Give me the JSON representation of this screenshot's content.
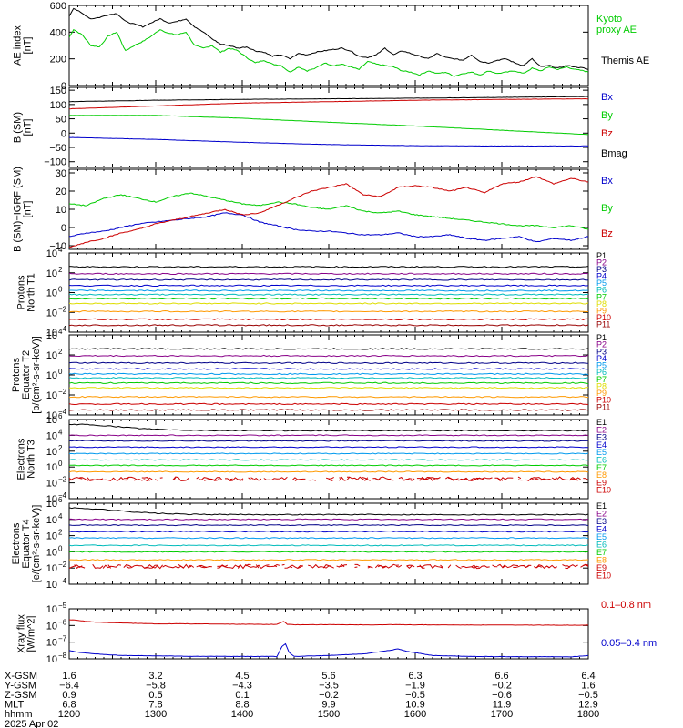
{
  "colors": {
    "black": "#000000",
    "green": "#00cc00",
    "red": "#cc0000",
    "blue": "#0000cc",
    "purple": "#880088",
    "navy": "#000088",
    "lightblue": "#0099ee",
    "cyan": "#00bbbb",
    "teal": "#008888",
    "lime": "#00ee00",
    "yellow": "#dddd00",
    "orange": "#ff9900",
    "darkorange": "#ff6600",
    "darkred": "#990000",
    "maroon": "#770000"
  },
  "chart_data": [
    {
      "type": "line",
      "ylabel": "AE index\n[nT]",
      "ylim": [
        0,
        600
      ],
      "yticks": [
        0,
        200,
        400,
        600
      ],
      "yticklabels": [
        "0",
        "200",
        "400",
        "600"
      ],
      "xlim": [
        1200,
        1800
      ],
      "series": [
        {
          "name": "Kyoto proxy AE",
          "color": "#00cc00",
          "x": [
            1200,
            1205,
            1215,
            1225,
            1235,
            1245,
            1255,
            1265,
            1275,
            1285,
            1295,
            1305,
            1315,
            1325,
            1335,
            1345,
            1355,
            1365,
            1375,
            1385,
            1395,
            1405,
            1415,
            1425,
            1435,
            1445,
            1455,
            1465,
            1475,
            1485,
            1495,
            1505,
            1515,
            1525,
            1535,
            1545,
            1555,
            1565,
            1575,
            1585,
            1595,
            1605,
            1615,
            1625,
            1635,
            1645,
            1655,
            1665,
            1675,
            1685,
            1695,
            1705,
            1715,
            1725,
            1735,
            1745,
            1755,
            1765,
            1775,
            1785,
            1795,
            1800
          ],
          "y": [
            360,
            420,
            380,
            300,
            290,
            370,
            400,
            260,
            300,
            330,
            370,
            420,
            390,
            380,
            400,
            300,
            280,
            300,
            250,
            280,
            260,
            210,
            170,
            190,
            160,
            150,
            100,
            140,
            110,
            130,
            170,
            150,
            160,
            140,
            120,
            180,
            160,
            150,
            140,
            110,
            100,
            80,
            110,
            90,
            100,
            70,
            90,
            100,
            80,
            110,
            90,
            100,
            110,
            90,
            130,
            110,
            140,
            120,
            140,
            120,
            110,
            100
          ]
        },
        {
          "name": "Themis AE",
          "color": "#000000",
          "x": [
            1200,
            1205,
            1215,
            1225,
            1235,
            1245,
            1255,
            1265,
            1275,
            1285,
            1295,
            1305,
            1315,
            1325,
            1335,
            1345,
            1355,
            1365,
            1375,
            1385,
            1395,
            1405,
            1415,
            1425,
            1435,
            1445,
            1455,
            1465,
            1475,
            1485,
            1495,
            1505,
            1515,
            1525,
            1535,
            1545,
            1555,
            1565,
            1575,
            1585,
            1595,
            1605,
            1615,
            1625,
            1635,
            1645,
            1655,
            1665,
            1675,
            1685,
            1695,
            1705,
            1715,
            1725,
            1735,
            1745,
            1755,
            1765,
            1775,
            1785,
            1795,
            1800
          ],
          "y": [
            520,
            580,
            540,
            500,
            510,
            530,
            540,
            480,
            460,
            440,
            470,
            500,
            470,
            480,
            500,
            440,
            400,
            350,
            310,
            300,
            280,
            290,
            260,
            250,
            220,
            230,
            200,
            240,
            230,
            250,
            260,
            270,
            280,
            260,
            220,
            210,
            230,
            280,
            230,
            260,
            240,
            220,
            200,
            240,
            210,
            200,
            190,
            230,
            180,
            170,
            190,
            200,
            170,
            150,
            200,
            140,
            150,
            130,
            150,
            140,
            130,
            120
          ]
        }
      ],
      "legend": [
        "Kyoto\nproxy AE",
        "Themis AE"
      ]
    },
    {
      "type": "line",
      "ylabel": "B (SM)\n[nT]",
      "ylim": [
        -120,
        160
      ],
      "yticks": [
        -100,
        -50,
        0,
        50,
        100,
        150
      ],
      "yticklabels": [
        "−100",
        "−50",
        "0",
        "50",
        "100",
        "150"
      ],
      "xlim": [
        1200,
        1800
      ],
      "series": [
        {
          "name": "Bx",
          "color": "#0000cc",
          "x": [
            1200,
            1300,
            1400,
            1500,
            1600,
            1700,
            1800
          ],
          "y": [
            -15,
            -22,
            -32,
            -40,
            -44,
            -45,
            -45
          ]
        },
        {
          "name": "By",
          "color": "#00cc00",
          "x": [
            1200,
            1300,
            1400,
            1500,
            1600,
            1700,
            1800
          ],
          "y": [
            62,
            62,
            52,
            38,
            25,
            10,
            -5
          ]
        },
        {
          "name": "Bz",
          "color": "#cc0000",
          "x": [
            1200,
            1300,
            1400,
            1500,
            1600,
            1700,
            1800
          ],
          "y": [
            85,
            95,
            105,
            110,
            115,
            118,
            120
          ]
        },
        {
          "name": "Bmag",
          "color": "#000000",
          "x": [
            1200,
            1300,
            1400,
            1500,
            1600,
            1700,
            1800
          ],
          "y": [
            110,
            115,
            118,
            120,
            122,
            125,
            128
          ]
        }
      ]
    },
    {
      "type": "line",
      "ylabel": "B (SM)−IGRF (SM)\n[nT]",
      "ylim": [
        -12,
        32
      ],
      "yticks": [
        -10,
        0,
        10,
        20,
        30
      ],
      "yticklabels": [
        "−10",
        "0",
        "10",
        "20",
        "30"
      ],
      "xlim": [
        1200,
        1800
      ],
      "series": [
        {
          "name": "Bx",
          "color": "#0000cc",
          "x": [
            1200,
            1220,
            1240,
            1260,
            1280,
            1300,
            1320,
            1340,
            1360,
            1380,
            1400,
            1420,
            1440,
            1460,
            1480,
            1500,
            1520,
            1540,
            1560,
            1580,
            1600,
            1620,
            1640,
            1660,
            1680,
            1700,
            1720,
            1740,
            1760,
            1780,
            1800
          ],
          "y": [
            -5,
            -3,
            -2,
            0,
            2,
            3,
            4,
            5,
            6,
            8,
            7,
            3,
            1,
            -1,
            -2,
            -2,
            -3,
            -4,
            -4,
            -3,
            -5,
            -5,
            -4,
            -6,
            -7,
            -6,
            -5,
            -8,
            -6,
            -7,
            -5
          ]
        },
        {
          "name": "By",
          "color": "#00cc00",
          "x": [
            1200,
            1220,
            1240,
            1260,
            1280,
            1300,
            1320,
            1340,
            1360,
            1380,
            1400,
            1420,
            1440,
            1460,
            1480,
            1500,
            1520,
            1540,
            1560,
            1580,
            1600,
            1620,
            1640,
            1660,
            1680,
            1700,
            1720,
            1740,
            1760,
            1780,
            1800
          ],
          "y": [
            13,
            12,
            16,
            18,
            16,
            14,
            17,
            19,
            17,
            15,
            13,
            12,
            14,
            13,
            11,
            10,
            12,
            9,
            8,
            9,
            7,
            6,
            5,
            4,
            3,
            2,
            1,
            1,
            0,
            1,
            -1
          ]
        },
        {
          "name": "Bz",
          "color": "#cc0000",
          "x": [
            1200,
            1220,
            1240,
            1260,
            1280,
            1300,
            1320,
            1340,
            1360,
            1380,
            1400,
            1420,
            1440,
            1460,
            1480,
            1500,
            1520,
            1540,
            1560,
            1580,
            1600,
            1620,
            1640,
            1660,
            1680,
            1700,
            1720,
            1740,
            1760,
            1780,
            1800
          ],
          "y": [
            -11,
            -8,
            -6,
            -3,
            -1,
            2,
            4,
            6,
            8,
            10,
            7,
            8,
            12,
            16,
            20,
            22,
            24,
            18,
            17,
            22,
            23,
            22,
            20,
            22,
            19,
            24,
            25,
            28,
            24,
            27,
            25
          ]
        }
      ]
    },
    {
      "type": "line",
      "ylabel": "Protons\nNorth T1",
      "yscale": "log",
      "ylim_exp": [
        -4,
        4
      ],
      "yticks_exp": [
        -4,
        -2,
        0,
        2,
        4
      ],
      "xlim": [
        1200,
        1800
      ],
      "series_names": [
        "P1",
        "P2",
        "P3",
        "P4",
        "P5",
        "P6",
        "P7",
        "P8",
        "P9",
        "P10",
        "P11"
      ],
      "series_colors": [
        "#000000",
        "#880088",
        "#000088",
        "#0000cc",
        "#0099ee",
        "#00bbbb",
        "#00cc00",
        "#dddd00",
        "#ff9900",
        "#cc0000",
        "#990000"
      ],
      "levels_exp": [
        2.6,
        1.9,
        1.3,
        0.7,
        0.2,
        -0.2,
        -0.6,
        -1.1,
        -1.9,
        -2.7,
        -3.3
      ]
    },
    {
      "type": "line",
      "ylabel": "Protons\nEquator T2\n[p/(cm²-s-sr-keV)]",
      "yscale": "log",
      "ylim_exp": [
        -4,
        4
      ],
      "yticks_exp": [
        -4,
        -2,
        0,
        2,
        4
      ],
      "xlim": [
        1200,
        1800
      ],
      "series_names": [
        "P1",
        "P2",
        "P3",
        "P4",
        "P5",
        "P6",
        "P7",
        "P8",
        "P9",
        "P10",
        "P11"
      ],
      "series_colors": [
        "#000000",
        "#880088",
        "#000088",
        "#0000cc",
        "#0099ee",
        "#00bbbb",
        "#00cc00",
        "#dddd00",
        "#ff9900",
        "#cc0000",
        "#990000"
      ],
      "levels_exp": [
        2.6,
        1.9,
        1.2,
        0.6,
        0.1,
        -0.3,
        -0.8,
        -1.3,
        -2.2,
        -2.9,
        -3.5
      ]
    },
    {
      "type": "line",
      "ylabel": "Electrons\nNorth T3",
      "yscale": "log",
      "ylim_exp": [
        -4,
        6
      ],
      "yticks_exp": [
        -4,
        -2,
        0,
        2,
        4,
        6
      ],
      "xlim": [
        1200,
        1800
      ],
      "series_names": [
        "E1",
        "E2",
        "E3",
        "E4",
        "E5",
        "E6",
        "E7",
        "E8",
        "E9",
        "E10"
      ],
      "series_colors": [
        "#000000",
        "#880088",
        "#000088",
        "#0000cc",
        "#0099ee",
        "#00bbbb",
        "#00cc00",
        "#ff9900",
        "#cc0000",
        "#cc0000"
      ],
      "levels_exp": [
        4.8,
        4.0,
        3.3,
        2.5,
        1.7,
        0.9,
        0.2,
        -0.6,
        -1.5,
        -1.5
      ]
    },
    {
      "type": "line",
      "ylabel": "Electrons\nEquator T4\n[e/(cm²-s-sr-keV)]",
      "yscale": "log",
      "ylim_exp": [
        -4,
        6
      ],
      "yticks_exp": [
        -4,
        -2,
        0,
        2,
        4,
        6
      ],
      "xlim": [
        1200,
        1800
      ],
      "series_names": [
        "E1",
        "E2",
        "E3",
        "E4",
        "E5",
        "E6",
        "E7",
        "E8",
        "E9",
        "E10"
      ],
      "series_colors": [
        "#000000",
        "#880088",
        "#000088",
        "#0000cc",
        "#0099ee",
        "#00bbbb",
        "#00cc00",
        "#ff9900",
        "#cc0000",
        "#cc0000"
      ],
      "levels_exp": [
        4.8,
        4.0,
        3.3,
        2.5,
        1.7,
        0.8,
        0.0,
        -1.0,
        -1.8,
        -1.8
      ]
    },
    {
      "type": "line",
      "ylabel": "Xray flux\n[W/m^2]",
      "yscale": "log",
      "ylim_exp": [
        -8,
        -5
      ],
      "yticks_exp": [
        -8,
        -7,
        -6,
        -5
      ],
      "xlim": [
        1200,
        1800
      ],
      "series": [
        {
          "name": "0.1–0.8 nm",
          "color": "#cc0000",
          "x": [
            1200,
            1210,
            1230,
            1260,
            1300,
            1340,
            1380,
            1420,
            1440,
            1448,
            1452,
            1460,
            1500,
            1540,
            1580,
            1620,
            1660,
            1700,
            1740,
            1780,
            1800
          ],
          "y": [
            -5.65,
            -5.7,
            -5.8,
            -5.85,
            -5.9,
            -5.9,
            -5.92,
            -5.93,
            -5.93,
            -5.75,
            -5.93,
            -5.95,
            -5.95,
            -5.96,
            -5.95,
            -5.96,
            -5.97,
            -5.97,
            -5.98,
            -5.98,
            -5.98
          ]
        },
        {
          "name": "0.05–0.4 nm",
          "color": "#0000cc",
          "x": [
            1200,
            1210,
            1230,
            1260,
            1300,
            1340,
            1380,
            1420,
            1440,
            1446,
            1450,
            1454,
            1460,
            1500,
            1540,
            1570,
            1580,
            1590,
            1620,
            1660,
            1700,
            1740,
            1780,
            1800
          ],
          "y": [
            -7.5,
            -7.6,
            -7.7,
            -7.8,
            -7.82,
            -7.85,
            -7.85,
            -7.86,
            -7.86,
            -7.25,
            -7.1,
            -7.6,
            -7.86,
            -7.8,
            -7.7,
            -7.5,
            -7.4,
            -7.55,
            -7.8,
            -7.85,
            -7.87,
            -7.87,
            -7.88,
            -7.8
          ]
        }
      ]
    }
  ],
  "footer": {
    "row_labels": [
      "X-GSM",
      "Y-GSM",
      "Z-GSM",
      "MLT",
      "hhmm"
    ],
    "date": "2025 Apr 02",
    "columns": [
      [
        "1.6",
        "−6.4",
        "0.9",
        "6.8",
        "1200"
      ],
      [
        "3.2",
        "−5.8",
        "0.5",
        "7.8",
        "1300"
      ],
      [
        "4.5",
        "−4.3",
        "0.1",
        "8.8",
        "1400"
      ],
      [
        "5.6",
        "−3.5",
        "−0.2",
        "9.9",
        "1500"
      ],
      [
        "6.3",
        "−1.9",
        "−0.5",
        "10.9",
        "1600"
      ],
      [
        "6.6",
        "−0.2",
        "−0.6",
        "11.9",
        "1700"
      ],
      [
        "6.4",
        "1.6",
        "−0.5",
        "12.9",
        "1800"
      ]
    ]
  }
}
